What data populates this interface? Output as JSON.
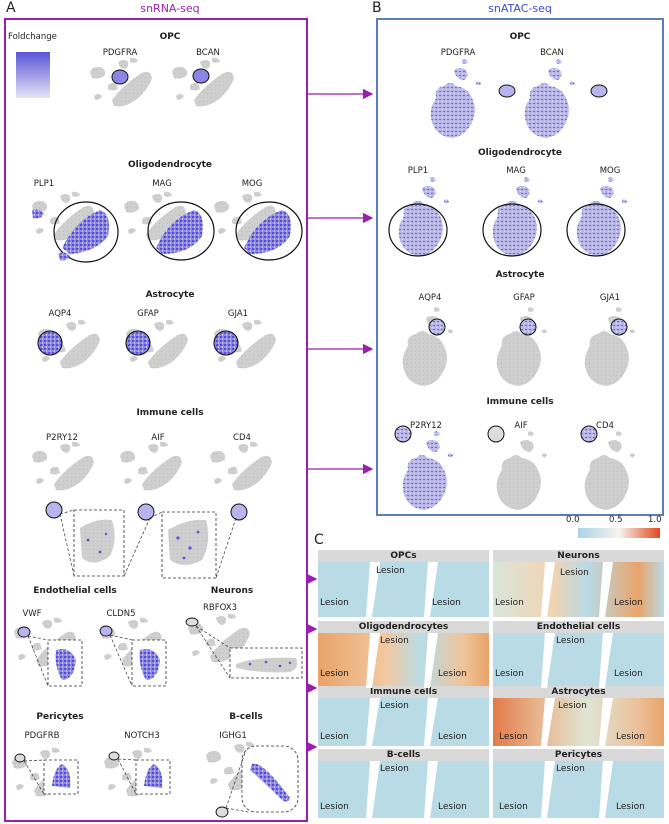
{
  "panels": {
    "a": {
      "letter": "A",
      "title": "snRNA-seq"
    },
    "b": {
      "letter": "B",
      "title": "snATAC-seq"
    },
    "c": {
      "letter": "C"
    }
  },
  "legend_a": {
    "title": "Foldchange",
    "color_high": "#5a55d8",
    "color_low": "#e6e3f5"
  },
  "snrna_sections": [
    {
      "title": "OPC",
      "genes": [
        "PDGFRA",
        "BCAN"
      ]
    },
    {
      "title": "Oligodendrocyte",
      "genes": [
        "PLP1",
        "MAG",
        "MOG"
      ]
    },
    {
      "title": "Astrocyte",
      "genes": [
        "AQP4",
        "GFAP",
        "GJA1"
      ]
    },
    {
      "title": "Immune cells",
      "genes": [
        "P2RY12",
        "AIF",
        "CD4"
      ]
    },
    {
      "title": "Endothelial cells",
      "genes": [
        "VWF",
        "CLDN5"
      ]
    },
    {
      "title": "Neurons",
      "genes": [
        "RBFOX3"
      ]
    },
    {
      "title": "Pericytes",
      "genes": [
        "PDGFRB",
        "NOTCH3"
      ]
    },
    {
      "title": "B-cells",
      "genes": [
        "IGHG1"
      ]
    }
  ],
  "snatac_sections": [
    {
      "title": "OPC",
      "genes": [
        "PDGFRA",
        "BCAN"
      ]
    },
    {
      "title": "Oligodendrocyte",
      "genes": [
        "PLP1",
        "MAG",
        "MOG"
      ]
    },
    {
      "title": "Astrocyte",
      "genes": [
        "AQP4",
        "GFAP",
        "GJA1"
      ]
    },
    {
      "title": "Immune cells",
      "genes": [
        "P2RY12",
        "AIF",
        "CD4"
      ]
    }
  ],
  "colorbar_c": {
    "ticks": [
      "0.0",
      "0.5",
      "1.0"
    ],
    "colors": [
      "#a9d3e6",
      "#f7f4ee",
      "#e2461d"
    ]
  },
  "spatial": [
    {
      "title": "OPCs",
      "lesions": [
        "Lesion",
        "Lesion",
        "Lesion"
      ]
    },
    {
      "title": "Neurons",
      "lesions": [
        "Lesion",
        "Lesion",
        "Lesion"
      ]
    },
    {
      "title": "Oligodendrocytes",
      "lesions": [
        "Lesion",
        "Lesion",
        "Lesion"
      ]
    },
    {
      "title": "Endothelial cells",
      "lesions": [
        "Lesion",
        "Lesion",
        "Lesion"
      ]
    },
    {
      "title": "Immune cells",
      "lesions": [
        "Lesion",
        "Lesion",
        "Lesion"
      ]
    },
    {
      "title": "Astrocytes",
      "lesions": [
        "Lesion",
        "Lesion",
        "Lesion"
      ]
    },
    {
      "title": "B-cells",
      "lesions": [
        "Lesion",
        "Lesion",
        "Lesion"
      ]
    },
    {
      "title": "Pericytes",
      "lesions": [
        "Lesion",
        "Lesion",
        "Lesion"
      ]
    }
  ],
  "colors": {
    "purple": "#9a1fb0",
    "blue_frame": "#5b7dbd",
    "umap_grey": "#c8c8c8",
    "umap_blue": "#4a46d6"
  }
}
